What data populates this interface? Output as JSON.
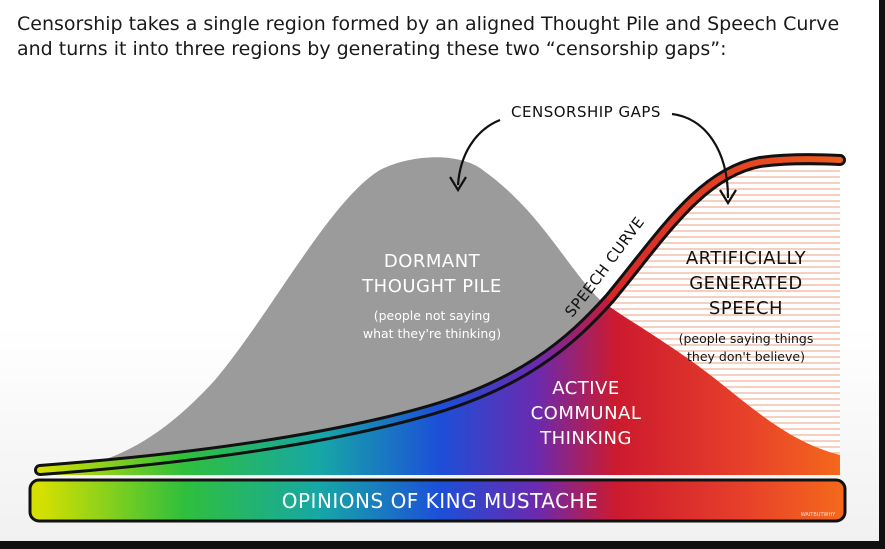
{
  "slide": {
    "text": "Censorship takes a single region formed by an aligned Thought Pile and Speech Curve and turns it into three regions by generating these two “censorship gaps”:"
  },
  "diagram": {
    "callout": "CENSORSHIP GAPS",
    "curve_label": "SPEECH CURVE",
    "dormant": {
      "title_lines": [
        "DORMANT",
        "THOUGHT PILE"
      ],
      "note_lines": [
        "(people not saying",
        "what they're thinking)"
      ]
    },
    "active": {
      "title_lines": [
        "ACTIVE",
        "COMMUNAL",
        "THINKING"
      ]
    },
    "artificial": {
      "title_lines": [
        "ARTIFICIALLY",
        "GENERATED",
        "SPEECH"
      ],
      "note_lines": [
        "(people saying things",
        "they don't believe)"
      ]
    },
    "axis_label": "OPINIONS OF KING MUSTACHE",
    "watermark": "WAITBUTWHY",
    "colors": {
      "pile_gray": "#9b9b9b",
      "spectrum": [
        "#d4e000",
        "#2ec33b",
        "#1d4fd6",
        "#c8182c",
        "#f05a1a"
      ],
      "curve_red": "#e3262b"
    }
  }
}
